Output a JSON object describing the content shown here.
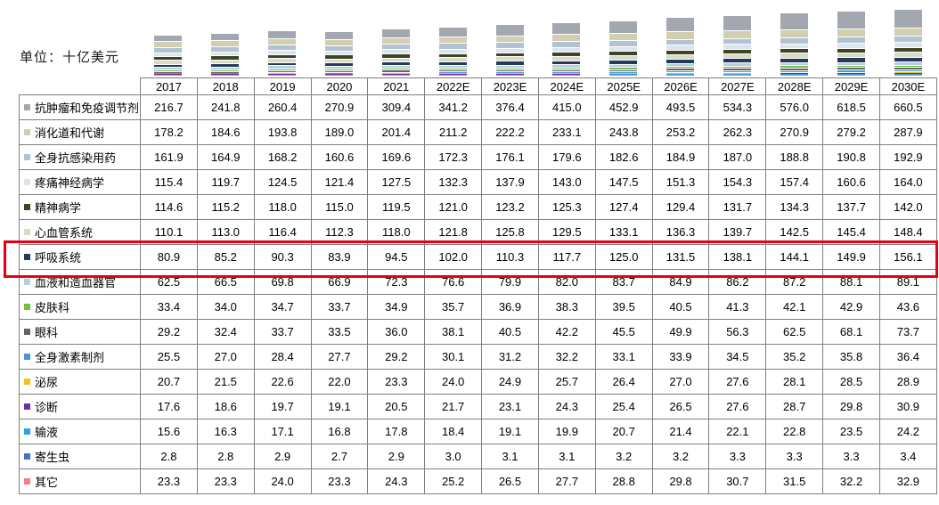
{
  "unit_label": "单位：十亿美元",
  "chart_data": {
    "type": "bar",
    "stacked": true,
    "title": "",
    "unit_label": "单位：十亿美元",
    "legend_position": "table-rows-left",
    "grid": false,
    "categories": [
      "2017",
      "2018",
      "2019",
      "2020",
      "2021",
      "2022E",
      "2023E",
      "2024E",
      "2025E",
      "2026E",
      "2027E",
      "2028E",
      "2029E",
      "2030E"
    ],
    "series": [
      {
        "name": "抗肿瘤和免疫调节剂",
        "color": "#a3a7b0",
        "values": [
          216.7,
          241.8,
          260.4,
          270.9,
          309.4,
          341.2,
          376.4,
          415.0,
          452.9,
          493.5,
          534.3,
          576.0,
          618.5,
          660.5
        ]
      },
      {
        "name": "消化道和代谢",
        "color": "#d2cfb0",
        "values": [
          178.2,
          184.6,
          193.8,
          189.0,
          201.4,
          211.2,
          222.2,
          233.1,
          243.8,
          253.2,
          262.3,
          270.9,
          279.2,
          287.9
        ]
      },
      {
        "name": "全身抗感染用药",
        "color": "#b3c2d3",
        "values": [
          161.9,
          164.9,
          168.2,
          160.6,
          169.6,
          172.3,
          176.1,
          179.6,
          182.6,
          184.9,
          187.0,
          188.8,
          190.8,
          192.9
        ]
      },
      {
        "name": "疼痛神经病学",
        "color": "#dce5ee",
        "values": [
          115.4,
          119.7,
          124.5,
          121.4,
          127.5,
          132.3,
          137.9,
          143.0,
          147.5,
          151.3,
          154.3,
          157.4,
          160.6,
          164.0
        ]
      },
      {
        "name": "精神病学",
        "color": "#3f4424",
        "values": [
          114.6,
          115.2,
          118.0,
          115.0,
          119.5,
          121.0,
          123.2,
          125.3,
          127.4,
          129.4,
          131.7,
          134.3,
          137.7,
          142.0
        ]
      },
      {
        "name": "心血管系统",
        "color": "#d8dbc5",
        "values": [
          110.1,
          113.0,
          116.4,
          112.3,
          118.0,
          121.8,
          125.8,
          129.5,
          133.1,
          136.3,
          139.7,
          142.5,
          145.4,
          148.4
        ]
      },
      {
        "name": "呼吸系统",
        "color": "#24395c",
        "values": [
          80.9,
          85.2,
          90.3,
          83.9,
          94.5,
          102.0,
          110.3,
          117.7,
          125.0,
          131.5,
          138.1,
          144.1,
          149.9,
          156.1
        ],
        "highlighted": true
      },
      {
        "name": "血液和造血器官",
        "color": "#b7cde2",
        "values": [
          62.5,
          66.5,
          69.8,
          66.9,
          72.3,
          76.6,
          79.9,
          82.0,
          83.7,
          84.9,
          86.2,
          87.2,
          88.1,
          89.1
        ]
      },
      {
        "name": "皮肤科",
        "color": "#70bf41",
        "values": [
          33.4,
          34.0,
          34.7,
          33.7,
          34.9,
          35.7,
          36.9,
          38.3,
          39.5,
          40.5,
          41.3,
          42.1,
          42.9,
          43.6
        ]
      },
      {
        "name": "眼科",
        "color": "#636363",
        "values": [
          29.2,
          32.4,
          33.7,
          33.5,
          36.0,
          38.1,
          40.5,
          42.2,
          45.5,
          49.9,
          56.3,
          62.5,
          68.1,
          73.7
        ]
      },
      {
        "name": "全身激素制剂",
        "color": "#4e94d8",
        "values": [
          25.5,
          27.0,
          28.4,
          27.7,
          29.2,
          30.1,
          31.2,
          32.2,
          33.1,
          33.9,
          34.5,
          35.2,
          35.8,
          36.4
        ]
      },
      {
        "name": "泌尿",
        "color": "#f0c318",
        "values": [
          20.7,
          21.5,
          22.6,
          22.0,
          23.3,
          24.0,
          24.9,
          25.7,
          26.4,
          27.0,
          27.6,
          28.1,
          28.5,
          28.9
        ]
      },
      {
        "name": "诊断",
        "color": "#7030a0",
        "values": [
          17.6,
          18.6,
          19.7,
          19.1,
          20.5,
          21.7,
          23.1,
          24.3,
          25.4,
          26.5,
          27.6,
          28.7,
          29.8,
          30.9
        ]
      },
      {
        "name": "输液",
        "color": "#29a3e3",
        "values": [
          15.6,
          16.3,
          17.1,
          16.8,
          17.8,
          18.4,
          19.1,
          19.9,
          20.7,
          21.4,
          22.1,
          22.8,
          23.5,
          24.2
        ]
      },
      {
        "name": "寄生虫",
        "color": "#4472c4",
        "values": [
          2.8,
          2.8,
          2.9,
          2.7,
          2.9,
          3.0,
          3.1,
          3.1,
          3.2,
          3.2,
          3.3,
          3.3,
          3.3,
          3.4
        ]
      },
      {
        "name": "其它",
        "color": "#f47d7d",
        "values": [
          23.3,
          23.3,
          24.0,
          23.3,
          24.3,
          25.2,
          26.5,
          27.7,
          28.8,
          29.8,
          30.7,
          31.5,
          32.2,
          32.9
        ]
      }
    ],
    "highlight": {
      "series": "呼吸系统",
      "box_color": "#e60012"
    }
  }
}
